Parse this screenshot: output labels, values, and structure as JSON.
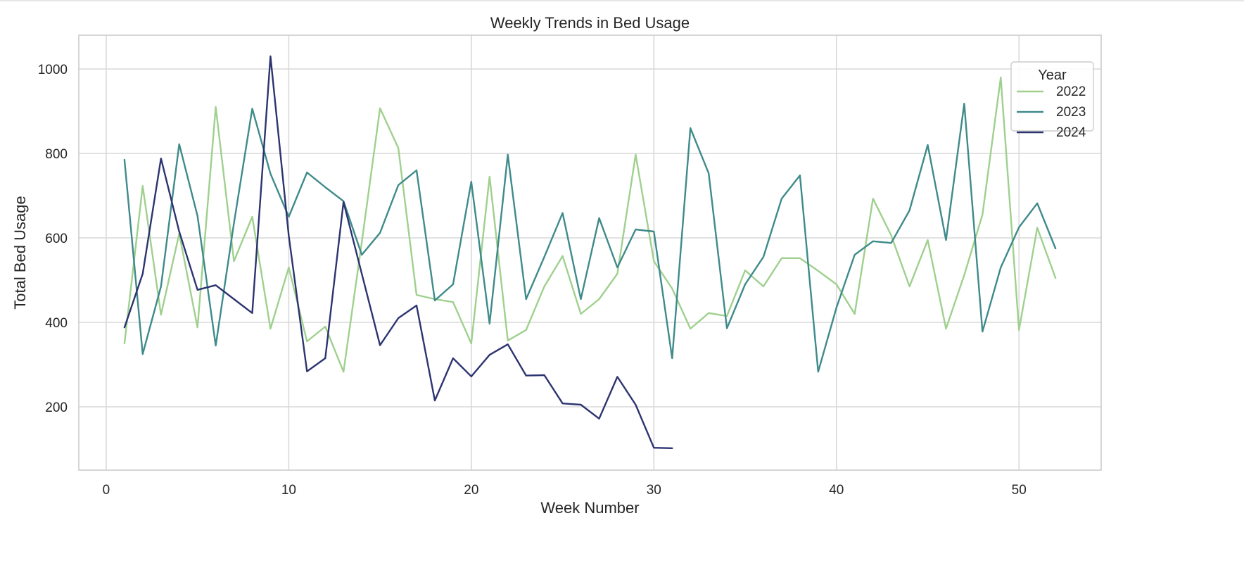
{
  "chart_data": {
    "type": "line",
    "title": "Weekly Trends in Bed Usage",
    "xlabel": "Week Number",
    "ylabel": "Total Bed Usage",
    "xlim": [
      -1.5,
      54.5
    ],
    "ylim": [
      50,
      1080
    ],
    "xticks": [
      0,
      10,
      20,
      30,
      40,
      50
    ],
    "yticks": [
      200,
      400,
      600,
      800,
      1000
    ],
    "grid": true,
    "legend": {
      "title": "Year",
      "placement": "top-right"
    },
    "series": [
      {
        "name": "2022",
        "color": "#9fd08e",
        "x": [
          1,
          2,
          3,
          4,
          5,
          6,
          7,
          8,
          9,
          10,
          11,
          12,
          13,
          14,
          15,
          16,
          17,
          18,
          19,
          20,
          21,
          22,
          23,
          24,
          25,
          26,
          27,
          28,
          29,
          30,
          31,
          32,
          33,
          34,
          35,
          36,
          37,
          38,
          39,
          40,
          41,
          42,
          43,
          44,
          45,
          46,
          47,
          48,
          49,
          50,
          51,
          52
        ],
        "values": [
          350,
          723,
          418,
          610,
          388,
          910,
          545,
          650,
          385,
          530,
          355,
          390,
          283,
          590,
          907,
          813,
          465,
          455,
          448,
          350,
          745,
          357,
          382,
          485,
          557,
          420,
          455,
          515,
          797,
          545,
          480,
          385,
          422,
          415,
          523,
          485,
          552,
          552,
          522,
          490,
          420,
          693,
          606,
          485,
          595,
          385,
          512,
          655,
          980,
          382,
          624,
          505
        ]
      },
      {
        "name": "2023",
        "color": "#3f8a8a",
        "x": [
          1,
          2,
          3,
          4,
          5,
          6,
          7,
          8,
          9,
          10,
          11,
          12,
          13,
          14,
          15,
          16,
          17,
          18,
          19,
          20,
          21,
          22,
          23,
          24,
          25,
          26,
          27,
          28,
          29,
          30,
          31,
          32,
          33,
          34,
          35,
          36,
          37,
          38,
          39,
          40,
          41,
          42,
          43,
          44,
          45,
          46,
          47,
          48,
          49,
          50,
          51,
          52
        ],
        "values": [
          785,
          325,
          485,
          822,
          652,
          345,
          635,
          906,
          752,
          650,
          755,
          720,
          687,
          560,
          612,
          725,
          760,
          452,
          490,
          733,
          397,
          797,
          455,
          555,
          659,
          455,
          647,
          530,
          620,
          615,
          315,
          860,
          753,
          386,
          490,
          555,
          693,
          748,
          283,
          435,
          560,
          592,
          588,
          665,
          820,
          595,
          918,
          378,
          530,
          625,
          682,
          575
        ]
      },
      {
        "name": "2024",
        "color": "#2c3470",
        "x": [
          1,
          2,
          3,
          4,
          5,
          6,
          7,
          8,
          9,
          10,
          11,
          12,
          13,
          14,
          15,
          16,
          17,
          18,
          19,
          20,
          21,
          22,
          23,
          24,
          25,
          26,
          27,
          28,
          29,
          30,
          31
        ],
        "values": [
          388,
          515,
          788,
          615,
          477,
          488,
          455,
          422,
          1030,
          605,
          284,
          315,
          685,
          515,
          346,
          410,
          440,
          215,
          315,
          272,
          323,
          348,
          274,
          275,
          208,
          205,
          172,
          271,
          205,
          103,
          102
        ]
      }
    ]
  }
}
